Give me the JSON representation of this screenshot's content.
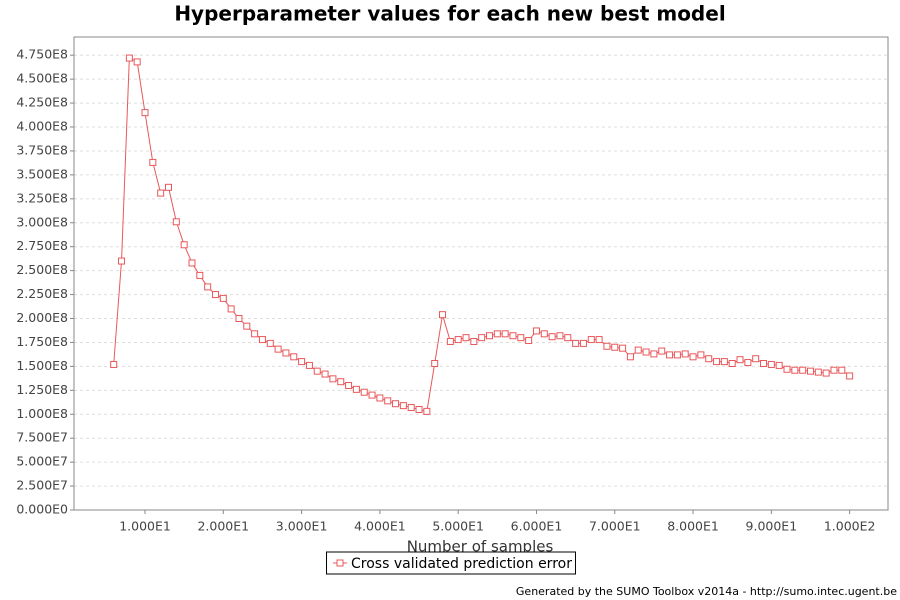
{
  "chart_data": {
    "type": "line",
    "title": "Hyperparameter values for each new best model",
    "x_label": "Number of samples",
    "footer": "Generated by the SUMO Toolbox v2014a - http://sumo.intec.ugent.be",
    "legend": "bottom",
    "grid": true,
    "xlim": [
      0.93,
      104.9
    ],
    "ylim": [
      0,
      494000000
    ],
    "xticks": [
      {
        "value": 10,
        "label": "1.000E1"
      },
      {
        "value": 20,
        "label": "2.000E1"
      },
      {
        "value": 30,
        "label": "3.000E1"
      },
      {
        "value": 40,
        "label": "4.000E1"
      },
      {
        "value": 50,
        "label": "5.000E1"
      },
      {
        "value": 60,
        "label": "6.000E1"
      },
      {
        "value": 70,
        "label": "7.000E1"
      },
      {
        "value": 80,
        "label": "8.000E1"
      },
      {
        "value": 90,
        "label": "9.000E1"
      },
      {
        "value": 100,
        "label": "1.000E2"
      }
    ],
    "yticks": [
      {
        "value": 0,
        "label": "0.000E0"
      },
      {
        "value": 25000000,
        "label": "2.500E7"
      },
      {
        "value": 50000000,
        "label": "5.000E7"
      },
      {
        "value": 75000000,
        "label": "7.500E7"
      },
      {
        "value": 100000000,
        "label": "1.000E8"
      },
      {
        "value": 125000000,
        "label": "1.250E8"
      },
      {
        "value": 150000000,
        "label": "1.500E8"
      },
      {
        "value": 175000000,
        "label": "1.750E8"
      },
      {
        "value": 200000000,
        "label": "2.000E8"
      },
      {
        "value": 225000000,
        "label": "2.250E8"
      },
      {
        "value": 250000000,
        "label": "2.500E8"
      },
      {
        "value": 275000000,
        "label": "2.750E8"
      },
      {
        "value": 300000000,
        "label": "3.000E8"
      },
      {
        "value": 325000000,
        "label": "3.250E8"
      },
      {
        "value": 350000000,
        "label": "3.500E8"
      },
      {
        "value": 375000000,
        "label": "3.750E8"
      },
      {
        "value": 400000000,
        "label": "4.000E8"
      },
      {
        "value": 425000000,
        "label": "4.250E8"
      },
      {
        "value": 450000000,
        "label": "4.500E8"
      },
      {
        "value": 475000000,
        "label": "4.750E8"
      }
    ],
    "x": [
      6,
      7,
      8,
      9,
      10,
      11,
      12,
      13,
      14,
      15,
      16,
      17,
      18,
      19,
      20,
      21,
      22,
      23,
      24,
      25,
      26,
      27,
      28,
      29,
      30,
      31,
      32,
      33,
      34,
      35,
      36,
      37,
      38,
      39,
      40,
      41,
      42,
      43,
      44,
      45,
      46,
      47,
      48,
      49,
      50,
      51,
      52,
      53,
      54,
      55,
      56,
      57,
      58,
      59,
      60,
      61,
      62,
      63,
      64,
      65,
      66,
      67,
      68,
      69,
      70,
      71,
      72,
      73,
      74,
      75,
      76,
      77,
      78,
      79,
      80,
      81,
      82,
      83,
      84,
      85,
      86,
      87,
      88,
      89,
      90,
      91,
      92,
      93,
      94,
      95,
      96,
      97,
      98,
      99,
      100
    ],
    "series": [
      {
        "name": "Cross validated prediction error",
        "color": "#e8585a",
        "values": [
          152000000,
          260000000,
          472000000,
          468000000,
          415000000,
          363000000,
          331000000,
          337000000,
          301000000,
          277000000,
          258000000,
          245000000,
          233000000,
          225000000,
          221000000,
          210000000,
          200000000,
          192000000,
          184000000,
          178000000,
          174000000,
          168000000,
          164000000,
          160000000,
          155000000,
          151000000,
          145000000,
          142000000,
          137000000,
          134000000,
          130000000,
          126000000,
          123000000,
          120000000,
          117000000,
          114000000,
          111000000,
          109000000,
          107000000,
          105000000,
          103000000,
          153000000,
          204000000,
          176000000,
          178000000,
          180000000,
          176000000,
          180000000,
          182000000,
          184000000,
          184000000,
          182000000,
          180000000,
          177000000,
          187000000,
          184000000,
          181000000,
          182000000,
          180000000,
          174000000,
          174000000,
          178000000,
          178000000,
          171000000,
          170000000,
          169000000,
          160000000,
          167000000,
          165000000,
          163000000,
          166000000,
          162000000,
          162000000,
          163000000,
          160000000,
          162000000,
          158000000,
          155000000,
          155000000,
          153000000,
          157000000,
          154000000,
          158000000,
          153000000,
          152000000,
          151000000,
          147000000,
          146000000,
          146000000,
          145000000,
          144000000,
          143000000,
          146000000,
          146000000,
          140000000
        ]
      }
    ]
  }
}
